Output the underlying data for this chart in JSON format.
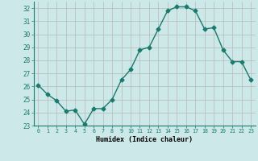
{
  "x": [
    0,
    1,
    2,
    3,
    4,
    5,
    6,
    7,
    8,
    9,
    10,
    11,
    12,
    13,
    14,
    15,
    16,
    17,
    18,
    19,
    20,
    21,
    22,
    23
  ],
  "y": [
    26.1,
    25.4,
    24.9,
    24.1,
    24.2,
    23.1,
    24.3,
    24.3,
    25.0,
    26.5,
    27.3,
    28.8,
    29.0,
    30.4,
    31.8,
    32.1,
    32.1,
    31.8,
    30.4,
    30.5,
    28.8,
    27.9,
    27.9,
    26.5
  ],
  "line_color": "#1a7a6e",
  "bg_color": "#cce8e8",
  "grid_color": "#b8b8b8",
  "xlabel": "Humidex (Indice chaleur)",
  "xlim": [
    -0.5,
    23.5
  ],
  "ylim": [
    23,
    32.5
  ],
  "yticks": [
    23,
    24,
    25,
    26,
    27,
    28,
    29,
    30,
    31,
    32
  ],
  "xticks": [
    0,
    1,
    2,
    3,
    4,
    5,
    6,
    7,
    8,
    9,
    10,
    11,
    12,
    13,
    14,
    15,
    16,
    17,
    18,
    19,
    20,
    21,
    22,
    23
  ],
  "marker_size": 2.5,
  "line_width": 1.0
}
